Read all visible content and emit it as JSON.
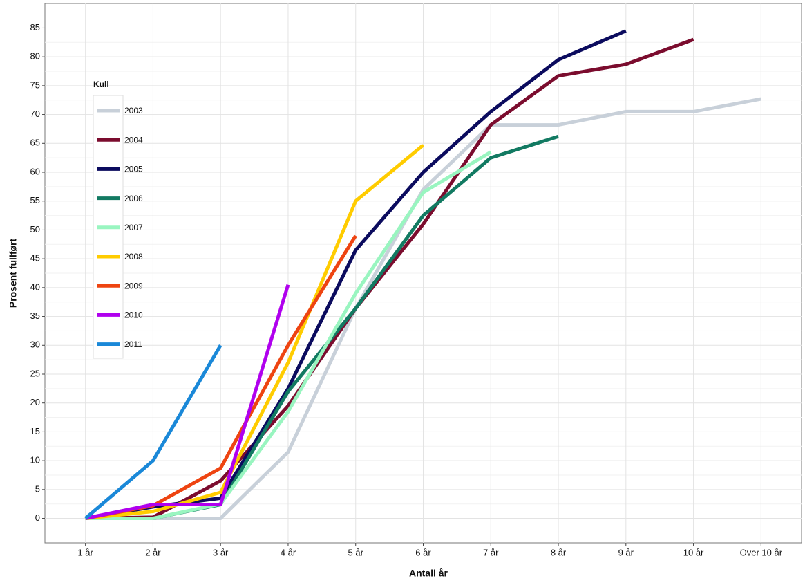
{
  "chart_data": {
    "type": "line",
    "x_label": "Antall år",
    "y_label": "Prosent fullført",
    "categories": [
      "1 år",
      "2 år",
      "3 år",
      "4 år",
      "5 år",
      "6 år",
      "7 år",
      "8 år",
      "9 år",
      "10 år",
      "Over 10 år"
    ],
    "ylim": [
      -4.25,
      89.25
    ],
    "yticks": [
      0,
      5,
      10,
      15,
      20,
      25,
      30,
      35,
      40,
      45,
      50,
      55,
      60,
      65,
      70,
      75,
      80,
      85
    ],
    "grid": true,
    "legend_title": "Kull",
    "legend_position": "left",
    "series": [
      {
        "name": "2003",
        "color": "#c8d0d9",
        "values": [
          0,
          0,
          0,
          11.5,
          36.4,
          57,
          68.2,
          68.2,
          70.5,
          70.5,
          72.7
        ]
      },
      {
        "name": "2004",
        "color": "#7b0c2e",
        "values": [
          0,
          0.2,
          6.5,
          19.5,
          36.4,
          51,
          68.2,
          76.7,
          78.7,
          83,
          null
        ]
      },
      {
        "name": "2005",
        "color": "#0b0b5e",
        "values": [
          0,
          2,
          3.5,
          22.5,
          46.5,
          60,
          70.5,
          79.5,
          84.5,
          null,
          null
        ]
      },
      {
        "name": "2006",
        "color": "#127a62",
        "values": [
          0,
          0,
          2.4,
          22,
          36.4,
          52.5,
          62.5,
          66.2,
          null,
          null,
          null
        ]
      },
      {
        "name": "2007",
        "color": "#99f5c0",
        "values": [
          0,
          0,
          2.5,
          18.5,
          39,
          56.5,
          63.5,
          null,
          null,
          null,
          null
        ]
      },
      {
        "name": "2008",
        "color": "#ffcc00",
        "values": [
          0,
          1.2,
          4.5,
          27,
          55,
          64.7,
          null,
          null,
          null,
          null,
          null
        ]
      },
      {
        "name": "2009",
        "color": "#ee4411",
        "values": [
          0,
          2.2,
          8.7,
          30,
          49,
          null,
          null,
          null,
          null,
          null,
          null
        ]
      },
      {
        "name": "2010",
        "color": "#b000ee",
        "values": [
          0,
          2.4,
          2.4,
          40.5,
          null,
          null,
          null,
          null,
          null,
          null,
          null
        ]
      },
      {
        "name": "2011",
        "color": "#1a88d8",
        "values": [
          0,
          10,
          30,
          null,
          null,
          null,
          null,
          null,
          null,
          null,
          null
        ]
      }
    ]
  }
}
